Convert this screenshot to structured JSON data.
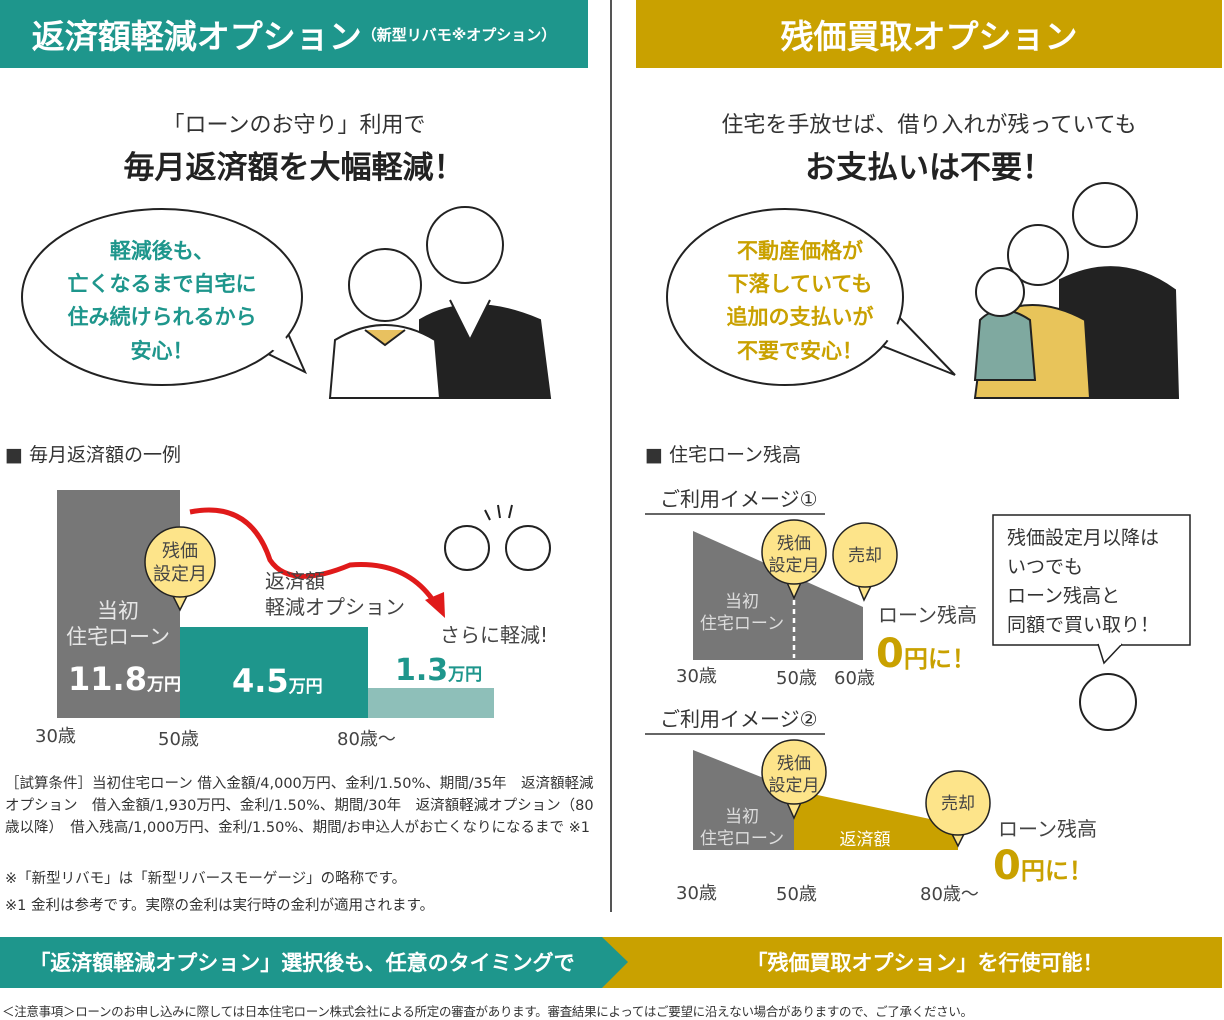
{
  "colors": {
    "teal": "#1e968c",
    "gold": "#c9a100",
    "gray": "#777777",
    "light_teal": "#8ebfb9",
    "bubble": "#fde48a",
    "red": "#e01a1a"
  },
  "left": {
    "title": "返済額軽減オプション",
    "title_note": "（新型リバモ※オプション）",
    "lead": "「ローンのお守り」利用で",
    "headline": "毎月返済額を大幅軽減！",
    "speech": [
      "軽減後も、",
      "亡くなるまで自宅に",
      "住み続けられるから",
      "安心！"
    ],
    "section": "■ 毎月返済額の一例",
    "chart": {
      "initial_label": [
        "当初",
        "住宅ローン"
      ],
      "bubble": [
        "残価",
        "設定月"
      ],
      "option_label": [
        "返済額",
        "軽減オプション"
      ],
      "further": "さらに軽減!",
      "bars": [
        {
          "value": "11.8",
          "unit": "万円"
        },
        {
          "value": "4.5",
          "unit": "万円"
        },
        {
          "value": "1.3",
          "unit": "万円"
        }
      ],
      "ages": [
        "30歳",
        "50歳",
        "80歳～"
      ]
    },
    "notes": [
      "［試算条件］当初住宅ローン 借入金額/4,000万円、金利/1.50%、期間/35年　返済額軽減オプション　借入金額/1,930万円、金利/1.50%、期間/30年　返済額軽減オプション（80歳以降）　借入残高/1,000万円、金利/1.50%、期間/お申込人がお亡くなりになるまで ※1",
      "※「新型リバモ」は「新型リバースモーゲージ」の略称です。",
      "※1 金利は参考です。実際の金利は実行時の金利が適用されます。"
    ]
  },
  "right": {
    "title": "残価買取オプション",
    "lead": "住宅を手放せば、借り入れが残っていても",
    "headline": "お支払いは不要！",
    "speech": [
      "不動産価格が",
      "下落していても",
      "追加の支払いが",
      "不要で安心！"
    ],
    "section": "■ 住宅ローン残高",
    "image1": {
      "title": "ご利用イメージ①",
      "bubble1": [
        "残価",
        "設定月"
      ],
      "bubble2": "売却",
      "initial_label": [
        "当初",
        "住宅ローン"
      ],
      "ages": [
        "30歳",
        "50歳",
        "60歳"
      ],
      "balance": "ローン残高",
      "zero": "0",
      "zero_suffix": "円に！"
    },
    "callout": [
      "残価設定月以降は",
      "いつでも",
      "ローン残高と",
      "同額で買い取り！"
    ],
    "image2": {
      "title": "ご利用イメージ②",
      "bubble1": [
        "残価",
        "設定月"
      ],
      "bubble2": "売却",
      "initial_label": [
        "当初",
        "住宅ローン"
      ],
      "option_label": [
        "返済額",
        "軽減オプション"
      ],
      "ages": [
        "30歳",
        "50歳",
        "80歳～"
      ],
      "balance": "ローン残高",
      "zero": "0",
      "zero_suffix": "円に！"
    }
  },
  "banner": {
    "left": "「返済額軽減オプション」選択後も、任意のタイミングで",
    "right": "「残価買取オプション」を行使可能！"
  },
  "footer": "＜注意事項＞ローンのお申し込みに際しては日本住宅ローン株式会社による所定の審査があります。審査結果によってはご要望に沿えない場合がありますので、ご了承ください。"
}
